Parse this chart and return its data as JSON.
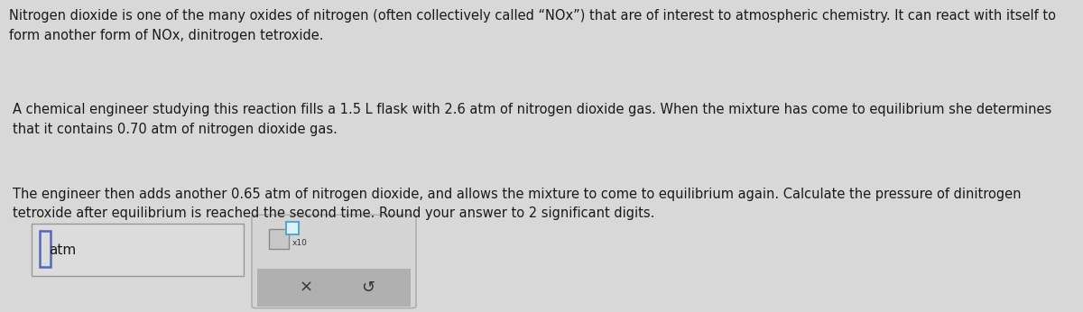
{
  "bg_color": "#d8d8d8",
  "para_indent": 0.008,
  "paragraph1": "Nitrogen dioxide is one of the many oxides of nitrogen (often collectively called “NOx”) that are of interest to atmospheric chemistry. It can react with itself to\nform another form of NOx, dinitrogen tetroxide.",
  "paragraph2": "A chemical engineer studying this reaction fills a 1.5 L flask with 2.6 atm of nitrogen dioxide gas. When the mixture has come to equilibrium she determines\nthat it contains 0.70 atm of nitrogen dioxide gas.",
  "paragraph3": "The engineer then adds another 0.65 atm of nitrogen dioxide, and allows the mixture to come to equilibrium again. Calculate the pressure of dinitrogen\ntetroxide after equilibrium is reached the second time. Round your answer to 2 significant digits.",
  "input_label": "atm",
  "x_label": "×",
  "undo_label": "↺",
  "x10_label": "x10",
  "font_size_para": 10.5,
  "font_size_ui": 11,
  "text_color": "#1a1a1a",
  "input_box_bg": "#dcdcdc",
  "input_box_border": "#888899",
  "blue_cursor_color": "#5566bb",
  "teal_exp_color": "#55aacc",
  "right_panel_bg": "#d4d4d4",
  "right_panel_border": "#aaaaaa",
  "button_bar_bg": "#b0b0b0",
  "small_base_box_bg": "#c8c8c8",
  "small_base_box_border": "#888888",
  "small_exp_box_bg": "#e0f0f8",
  "small_exp_box_border": "#55aacc"
}
